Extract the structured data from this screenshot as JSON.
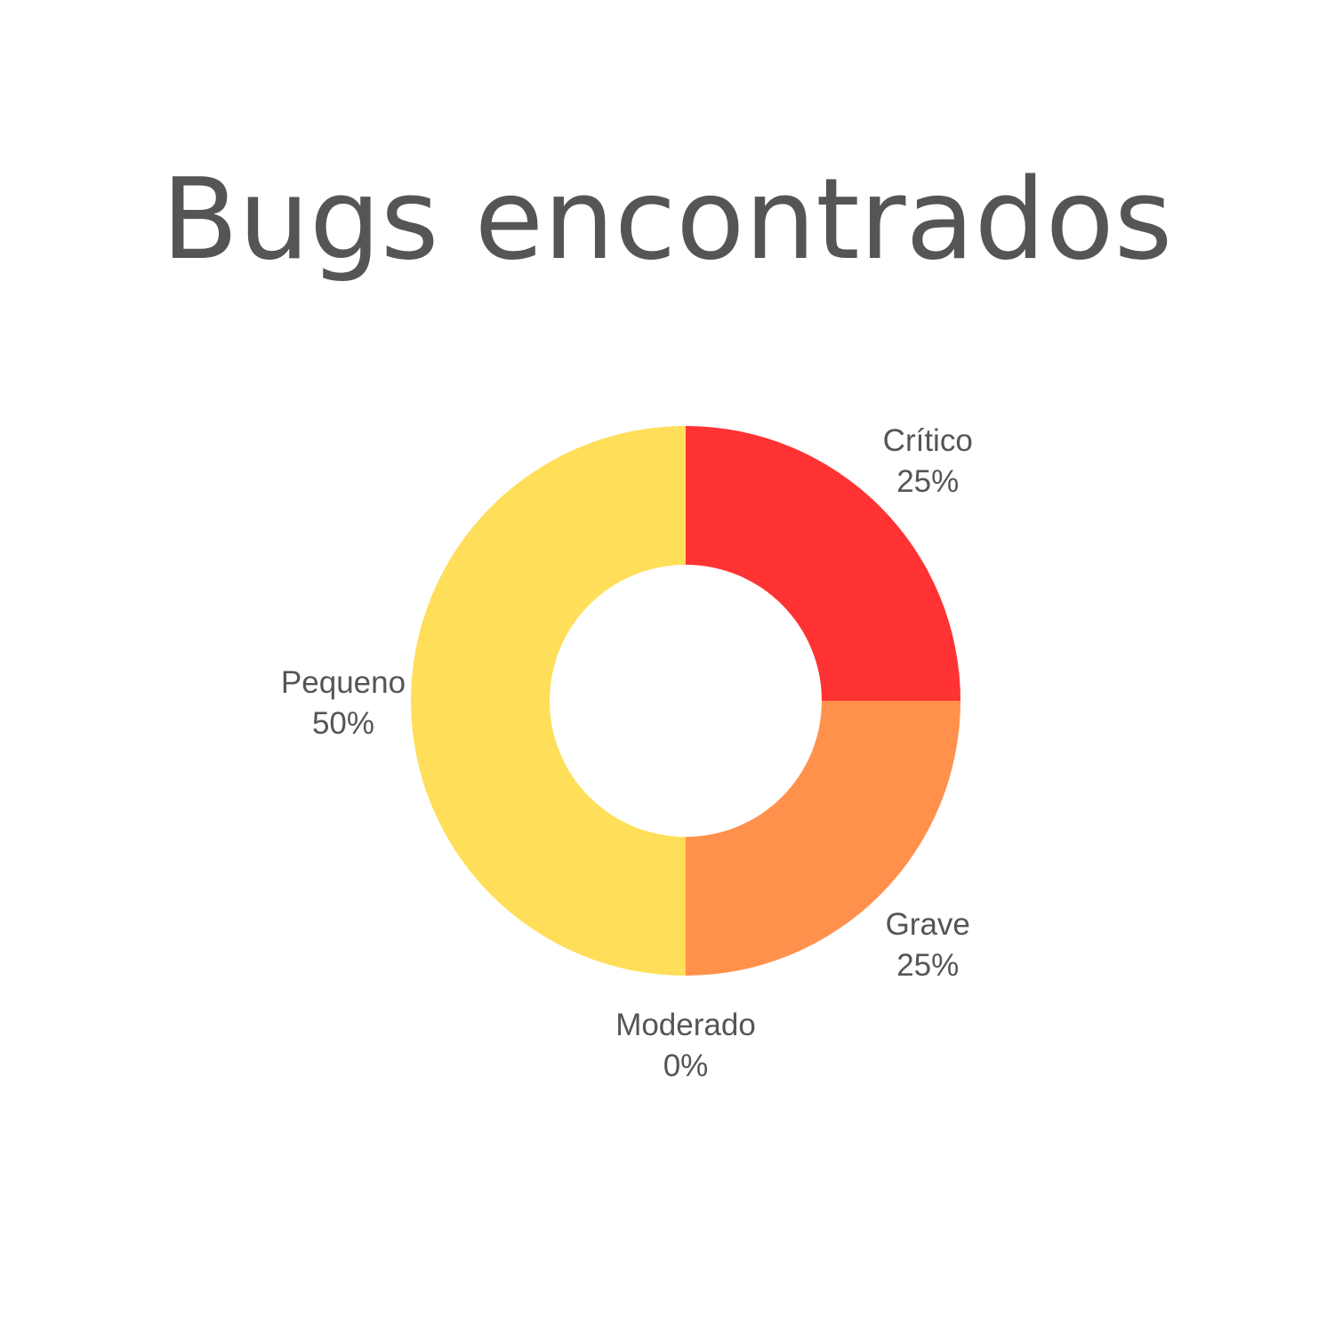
{
  "chart_data": {
    "type": "pie",
    "title": "Bugs encontrados",
    "donut": true,
    "categories": [
      "Crítico",
      "Grave",
      "Moderado",
      "Pequeno"
    ],
    "values": [
      25,
      25,
      0,
      50
    ],
    "value_labels": [
      "25%",
      "25%",
      "0%",
      "50%"
    ],
    "colors": [
      "#FF3333",
      "#FF914D",
      "#FF914D",
      "#FFDE59"
    ],
    "start": "top",
    "direction": "clockwise",
    "legend": "none"
  }
}
